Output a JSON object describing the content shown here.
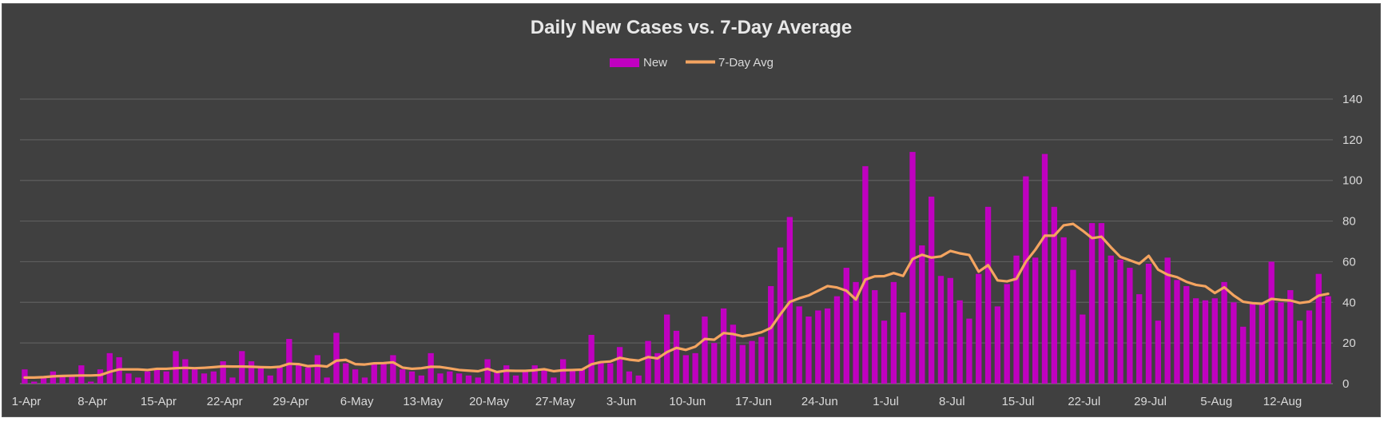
{
  "chart_data": {
    "type": "bar",
    "title": "Daily New Cases vs. 7-Day Average",
    "legend_position": "top",
    "legend": [
      "New",
      "7-Day Avg"
    ],
    "y_axis_side": "right",
    "ylim": [
      0,
      140
    ],
    "y_ticks": [
      0,
      20,
      40,
      60,
      80,
      100,
      120,
      140
    ],
    "grid": true,
    "x_tick_labels": [
      "1-Apr",
      "8-Apr",
      "15-Apr",
      "22-Apr",
      "29-Apr",
      "6-May",
      "13-May",
      "20-May",
      "27-May",
      "3-Jun",
      "10-Jun",
      "17-Jun",
      "24-Jun",
      "1-Jul",
      "8-Jul",
      "15-Jul",
      "22-Jul",
      "29-Jul",
      "5-Aug",
      "12-Aug"
    ],
    "x_range": [
      "1-Apr",
      "15-Aug"
    ],
    "colors": {
      "new": "#c000c0",
      "avg": "#f4a460",
      "background": "#404040",
      "text": "#d9d9d9"
    },
    "series": [
      {
        "name": "New",
        "kind": "bar",
        "values": [
          7,
          1,
          3,
          6,
          4,
          4,
          9,
          1,
          7,
          15,
          13,
          5,
          3,
          6,
          7,
          6,
          16,
          12,
          7,
          5,
          6,
          11,
          3,
          16,
          11,
          8,
          4,
          8,
          22,
          9,
          8,
          14,
          3,
          25,
          10,
          7,
          3,
          10,
          10,
          14,
          7,
          6,
          4,
          15,
          5,
          6,
          5,
          4,
          3,
          12,
          6,
          9,
          4,
          6,
          9,
          7,
          3,
          12,
          7,
          7,
          24,
          11,
          10,
          18,
          6,
          4,
          21,
          15,
          34,
          26,
          14,
          15,
          33,
          20,
          37,
          29,
          19,
          21,
          23,
          48,
          67,
          82,
          38,
          33,
          36,
          37,
          43,
          57,
          50,
          107,
          46,
          31,
          50,
          35,
          114,
          68,
          92,
          53,
          52,
          41,
          32,
          54,
          87,
          38,
          49,
          63,
          102,
          62,
          113,
          87,
          72,
          56,
          34,
          79,
          79,
          63,
          61,
          57,
          44,
          59,
          31,
          62,
          51,
          48,
          42,
          41,
          42,
          50,
          40,
          28,
          40,
          39,
          60,
          40,
          46,
          31,
          36,
          54,
          43
        ]
      },
      {
        "name": "7-Day Avg",
        "kind": "line",
        "values": [
          3,
          3,
          3.2,
          3.6,
          3.8,
          3.9,
          4,
          4,
          4.2,
          5.8,
          7,
          7,
          7,
          6.7,
          7.3,
          7.3,
          7.6,
          7.8,
          7.6,
          7.8,
          8.1,
          8.5,
          8.4,
          8.4,
          8.3,
          8.1,
          8,
          8.3,
          9.8,
          9.6,
          8.6,
          8.9,
          8.4,
          11.3,
          11.7,
          9.6,
          9.4,
          10,
          10.1,
          10.5,
          7.9,
          7.3,
          7.6,
          8.3,
          8.2,
          7.5,
          6.7,
          6.4,
          6.1,
          7.3,
          5.7,
          6.4,
          6.3,
          6.3,
          6.6,
          7.1,
          6.1,
          6.6,
          6.7,
          6.9,
          9.5,
          10.6,
          10.9,
          12.7,
          11.8,
          11.3,
          13.1,
          12.4,
          15.5,
          17.6,
          16.6,
          18.2,
          22,
          21.6,
          24.9,
          24.4,
          23.3,
          24.1,
          25.3,
          27.4,
          34.1,
          40.2,
          42,
          43.4,
          45.7,
          48,
          47.3,
          45.7,
          41.4,
          51.2,
          52.8,
          52.9,
          54.4,
          53,
          61.3,
          63.4,
          62,
          62.6,
          65.3,
          64.1,
          63.3,
          55.1,
          58.3,
          50.8,
          50.3,
          51.6,
          60,
          65.9,
          72.8,
          72.8,
          77.9,
          78.6,
          75.3,
          71.6,
          72.3,
          67.1,
          62.4,
          60.7,
          59,
          62.9,
          56.1,
          53.6,
          52.4,
          50.1,
          48.6,
          47.9,
          44.6,
          47.4,
          43.4,
          40.3,
          39.6,
          39.3,
          41.7,
          41.2,
          40.9,
          39.7,
          40.3,
          43.3,
          44.2
        ]
      }
    ]
  }
}
